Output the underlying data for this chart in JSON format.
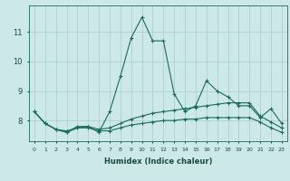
{
  "xlabel": "Humidex (Indice chaleur)",
  "ylabel": "",
  "background_color": "#cce8e8",
  "grid_color": "#aacccc",
  "line_color": "#1a6b5a",
  "x_values": [
    0,
    1,
    2,
    3,
    4,
    5,
    6,
    7,
    8,
    9,
    10,
    11,
    12,
    13,
    14,
    15,
    16,
    17,
    18,
    19,
    20,
    21,
    22,
    23
  ],
  "line1_y": [
    8.3,
    7.9,
    7.7,
    7.6,
    7.8,
    7.8,
    7.6,
    8.3,
    9.5,
    10.8,
    11.5,
    10.7,
    10.7,
    8.9,
    8.3,
    8.5,
    9.35,
    9.0,
    8.8,
    8.5,
    8.5,
    8.1,
    8.4,
    7.9
  ],
  "line2_y": [
    8.3,
    7.9,
    7.7,
    7.65,
    7.75,
    7.8,
    7.7,
    7.75,
    7.9,
    8.05,
    8.15,
    8.25,
    8.3,
    8.35,
    8.4,
    8.45,
    8.5,
    8.55,
    8.6,
    8.6,
    8.6,
    8.15,
    7.95,
    7.75
  ],
  "line3_y": [
    8.3,
    7.9,
    7.7,
    7.6,
    7.75,
    7.75,
    7.65,
    7.65,
    7.75,
    7.85,
    7.9,
    7.95,
    8.0,
    8.0,
    8.05,
    8.05,
    8.1,
    8.1,
    8.1,
    8.1,
    8.1,
    7.95,
    7.75,
    7.6
  ],
  "ylim_min": 7.3,
  "ylim_max": 11.9,
  "yticks": [
    8,
    9,
    10,
    11
  ],
  "xticks": [
    0,
    1,
    2,
    3,
    4,
    5,
    6,
    7,
    8,
    9,
    10,
    11,
    12,
    13,
    14,
    15,
    16,
    17,
    18,
    19,
    20,
    21,
    22,
    23
  ]
}
